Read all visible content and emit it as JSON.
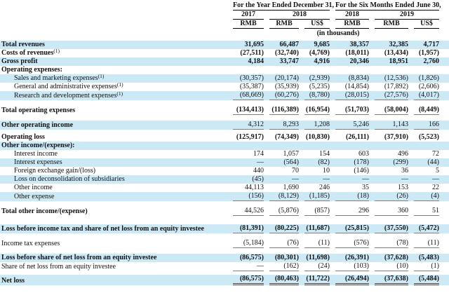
{
  "colors": {
    "row_shade": "#cde9f6",
    "header_rule": "#000000",
    "sum_rule": "#7f7f7f"
  },
  "table": {
    "header": {
      "group1": "For the Year Ended December 31,",
      "group2": "For the Six Months Ended June 30,",
      "years": [
        "2017",
        "2018",
        "2018",
        "2019"
      ],
      "currencies": [
        "RMB",
        "RMB",
        "US$",
        "RMB",
        "RMB",
        "US$"
      ],
      "units_note": "(in thousands)"
    },
    "rows": [
      {
        "label": "Total revenues",
        "sup": "",
        "indent": false,
        "bold": true,
        "num_bold": true,
        "shade": true,
        "ul": "",
        "gap_after": 0,
        "values": [
          "31,695",
          "66,487",
          "9,685",
          "38,357",
          "32,385",
          "4,717"
        ]
      },
      {
        "label": "Costs of revenues",
        "sup": "(1)",
        "indent": false,
        "bold": true,
        "num_bold": true,
        "shade": false,
        "ul": "",
        "gap_after": 0,
        "values": [
          "(27,511)",
          "(32,740)",
          "(4,769)",
          "(18,011)",
          "(13,434)",
          "(1,957)"
        ]
      },
      {
        "label": "Gross profit",
        "sup": "",
        "indent": false,
        "bold": true,
        "num_bold": true,
        "shade": true,
        "ul": "",
        "gap_after": 0,
        "values": [
          "4,184",
          "33,747",
          "4,916",
          "20,346",
          "18,951",
          "2,760"
        ]
      },
      {
        "label": "Operating expenses:",
        "sup": "",
        "indent": false,
        "bold": true,
        "num_bold": false,
        "shade": false,
        "ul": "",
        "gap_after": 0,
        "values": [
          "",
          "",
          "",
          "",
          "",
          ""
        ]
      },
      {
        "label": "Sales and marketing expenses",
        "sup": "(1)",
        "indent": true,
        "bold": false,
        "num_bold": false,
        "shade": true,
        "ul": "",
        "gap_after": 0,
        "values": [
          "(30,357)",
          "(20,174)",
          "(2,939)",
          "(8,834)",
          "(12,536)",
          "(1,826)"
        ]
      },
      {
        "label": "General and administrative expenses",
        "sup": "(1)",
        "indent": true,
        "bold": false,
        "num_bold": false,
        "shade": false,
        "ul": "",
        "gap_after": 0,
        "values": [
          "(35,387)",
          "(35,939)",
          "(5,235)",
          "(14,854)",
          "(17,892)",
          "(2,606)"
        ]
      },
      {
        "label": "Research and development expenses",
        "sup": "(1)",
        "indent": true,
        "bold": false,
        "num_bold": false,
        "shade": true,
        "ul": "u1",
        "gap_after": 8,
        "values": [
          "(68,669)",
          "(60,276)",
          "(8,780)",
          "(28,015)",
          "(27,576)",
          "(4,017)"
        ]
      },
      {
        "label": "Total operating expenses",
        "sup": "",
        "indent": false,
        "bold": true,
        "num_bold": true,
        "shade": false,
        "ul": "u1",
        "gap_after": 8,
        "values": [
          "(134,413)",
          "(116,389)",
          "(16,954)",
          "(51,703)",
          "(58,004)",
          "(8,449)"
        ]
      },
      {
        "label": "Other operating income",
        "sup": "",
        "indent": false,
        "bold": true,
        "num_bold": false,
        "shade": true,
        "ul": "u1",
        "gap_after": 5,
        "values": [
          "4,312",
          "8,293",
          "1,208",
          "5,246",
          "1,143",
          "166"
        ]
      },
      {
        "label": "Operating loss",
        "sup": "",
        "indent": false,
        "bold": true,
        "num_bold": true,
        "shade": false,
        "ul": "",
        "gap_after": 0,
        "values": [
          "(125,917)",
          "(74,349)",
          "(10,830)",
          "(26,111)",
          "(37,910)",
          "(5,523)"
        ]
      },
      {
        "label": "Other income/(expense):",
        "sup": "",
        "indent": false,
        "bold": true,
        "num_bold": false,
        "shade": true,
        "ul": "",
        "gap_after": 0,
        "values": [
          "",
          "",
          "",
          "",
          "",
          ""
        ]
      },
      {
        "label": "Interest income",
        "sup": "",
        "indent": true,
        "bold": false,
        "num_bold": false,
        "shade": false,
        "ul": "",
        "gap_after": 0,
        "values": [
          "174",
          "1,057",
          "154",
          "603",
          "496",
          "72"
        ]
      },
      {
        "label": "Interest expenses",
        "sup": "",
        "indent": true,
        "bold": false,
        "num_bold": false,
        "shade": true,
        "ul": "",
        "gap_after": 0,
        "values": [
          "—",
          "(564)",
          "(82)",
          "(178)",
          "(299)",
          "(44)"
        ]
      },
      {
        "label": "Foreign exchange gain/(loss)",
        "sup": "",
        "indent": true,
        "bold": false,
        "num_bold": false,
        "shade": false,
        "ul": "",
        "gap_after": 0,
        "values": [
          "440",
          "70",
          "10",
          "(146)",
          "36",
          "5"
        ]
      },
      {
        "label": "Loss on deconsolidation of subsidiaries",
        "sup": "",
        "indent": true,
        "bold": false,
        "num_bold": false,
        "shade": true,
        "ul": "",
        "gap_after": 0,
        "values": [
          "(45)",
          "—",
          "—",
          "—",
          "—",
          "—"
        ]
      },
      {
        "label": "Other income",
        "sup": "",
        "indent": true,
        "bold": false,
        "num_bold": false,
        "shade": false,
        "ul": "",
        "gap_after": 0,
        "values": [
          "44,113",
          "1,690",
          "246",
          "35",
          "153",
          "22"
        ]
      },
      {
        "label": "Other expense",
        "sup": "",
        "indent": true,
        "bold": false,
        "num_bold": false,
        "shade": true,
        "ul": "u1",
        "gap_after": 8,
        "values": [
          "(156)",
          "(8,129)",
          "(1,185)",
          "(18)",
          "(26)",
          "(4)"
        ]
      },
      {
        "label": "Total other income/(expense)",
        "sup": "",
        "indent": false,
        "bold": true,
        "num_bold": false,
        "shade": false,
        "ul": "u1",
        "gap_after": 12,
        "values": [
          "44,526",
          "(5,876)",
          "(857)",
          "296",
          "360",
          "51"
        ]
      },
      {
        "label": "Loss before income tax and share of net loss from an equity investee",
        "sup": "",
        "indent": false,
        "bold": true,
        "num_bold": true,
        "shade": true,
        "ul": "u1",
        "gap_after": 8,
        "values": [
          "(81,391)",
          "(80,225)",
          "(11,687)",
          "(25,815)",
          "(37,550)",
          "(5,472)"
        ]
      },
      {
        "label": "Income tax expenses",
        "sup": "",
        "indent": false,
        "bold": false,
        "num_bold": false,
        "shade": false,
        "ul": "u1",
        "gap_after": 8,
        "values": [
          "(5,184)",
          "(76)",
          "(11)",
          "(576)",
          "(78)",
          "(11)"
        ]
      },
      {
        "label": "Loss before share of net loss from an equity investee",
        "sup": "",
        "indent": false,
        "bold": true,
        "num_bold": true,
        "shade": true,
        "ul": "",
        "gap_after": 0,
        "values": [
          "(86,575)",
          "(80,301)",
          "(11,698)",
          "(26,391)",
          "(37,628)",
          "(5,483)"
        ]
      },
      {
        "label": "Share of net loss from an equity investee",
        "sup": "",
        "indent": false,
        "bold": false,
        "num_bold": false,
        "shade": false,
        "ul": "u1",
        "gap_after": 5,
        "values": [
          "—",
          "(162)",
          "(24)",
          "(103)",
          "(10)",
          "(1)"
        ]
      },
      {
        "label": "Net loss",
        "sup": "",
        "indent": false,
        "bold": true,
        "num_bold": true,
        "shade": true,
        "ul": "u2",
        "gap_after": 0,
        "values": [
          "(86,575)",
          "(80,463)",
          "(11,722)",
          "(26,494)",
          "(37,638)",
          "(5,484)"
        ]
      }
    ]
  }
}
